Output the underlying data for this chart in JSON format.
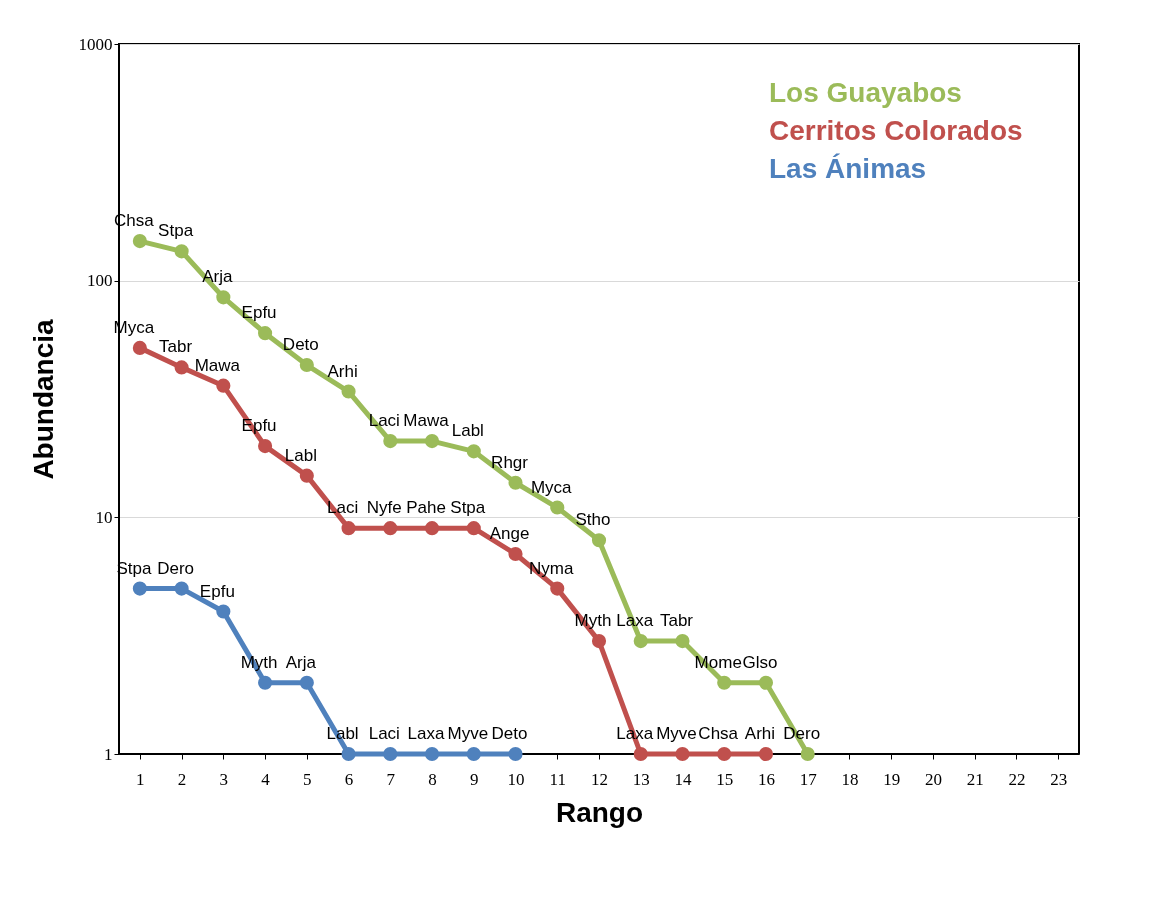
{
  "chart_data": {
    "type": "line",
    "xlabel": "Rango",
    "ylabel": "Abundancia",
    "log": "y",
    "grid": "y",
    "legend": "top right",
    "marker": "circle",
    "line_style": "solid",
    "x": [
      1,
      2,
      3,
      4,
      5,
      6,
      7,
      8,
      9,
      10,
      11,
      12,
      13,
      14,
      15,
      16,
      17
    ],
    "xlim": [
      0.5,
      23.5
    ],
    "xticks": [
      1,
      2,
      3,
      4,
      5,
      6,
      7,
      8,
      9,
      10,
      11,
      12,
      13,
      14,
      15,
      16,
      17,
      18,
      19,
      20,
      21,
      22,
      23
    ],
    "ylim": [
      1,
      1000
    ],
    "yticks": [
      1,
      10,
      100,
      1000
    ],
    "series": [
      {
        "name": "Los Guayabos",
        "color": "#9bbb59",
        "values": [
          147,
          133,
          85,
          60,
          44,
          34,
          21,
          21,
          19,
          14,
          11,
          8,
          3,
          3,
          2,
          2,
          1
        ]
      },
      {
        "name": "Cerritos Colorados",
        "color": "#c0504d",
        "values": [
          52,
          43,
          36,
          20,
          15,
          9,
          9,
          9,
          9,
          7,
          5,
          3,
          1,
          1,
          1,
          1,
          null
        ]
      },
      {
        "name": "Las Ánimas",
        "color": "#4f81bd",
        "values": [
          5,
          5,
          4,
          2,
          2,
          1,
          1,
          1,
          1,
          1,
          null,
          null,
          null,
          null,
          null,
          null,
          null
        ]
      }
    ],
    "annotations": [
      {
        "text": "Chsa",
        "x": 1,
        "y": 147
      },
      {
        "text": "Stpa",
        "x": 2,
        "y": 133
      },
      {
        "text": "Arja",
        "x": 3,
        "y": 85
      },
      {
        "text": "Epfu",
        "x": 4,
        "y": 60
      },
      {
        "text": "Deto",
        "x": 5,
        "y": 44
      },
      {
        "text": "Arhi",
        "x": 6,
        "y": 34
      },
      {
        "text": "Laci",
        "x": 7,
        "y": 21
      },
      {
        "text": "Mawa",
        "x": 8,
        "y": 21
      },
      {
        "text": "Labl",
        "x": 9,
        "y": 19
      },
      {
        "text": "Rhgr",
        "x": 10,
        "y": 14
      },
      {
        "text": "Myca",
        "x": 11,
        "y": 11
      },
      {
        "text": "Stho",
        "x": 12,
        "y": 8
      },
      {
        "text": "Laxa",
        "x": 13,
        "y": 3
      },
      {
        "text": "Tabr",
        "x": 14,
        "y": 3
      },
      {
        "text": "Mome",
        "x": 15,
        "y": 2
      },
      {
        "text": "Glso",
        "x": 16,
        "y": 2
      },
      {
        "text": "Dero",
        "x": 17,
        "y": 1
      },
      {
        "text": "Myca",
        "x": 1,
        "y": 52
      },
      {
        "text": "Tabr",
        "x": 2,
        "y": 43
      },
      {
        "text": "Mawa",
        "x": 3,
        "y": 36
      },
      {
        "text": "Epfu",
        "x": 4,
        "y": 20
      },
      {
        "text": "Labl",
        "x": 5,
        "y": 15
      },
      {
        "text": "Laci",
        "x": 6,
        "y": 9
      },
      {
        "text": "Nyfe",
        "x": 7,
        "y": 9
      },
      {
        "text": "Pahe",
        "x": 8,
        "y": 9
      },
      {
        "text": "Stpa",
        "x": 9,
        "y": 9
      },
      {
        "text": "Ange",
        "x": 10,
        "y": 7
      },
      {
        "text": "Nyma",
        "x": 11,
        "y": 5
      },
      {
        "text": "Myth",
        "x": 12,
        "y": 3
      },
      {
        "text": "Laxa",
        "x": 13,
        "y": 1
      },
      {
        "text": "Myve",
        "x": 14,
        "y": 1
      },
      {
        "text": "Chsa",
        "x": 15,
        "y": 1
      },
      {
        "text": "Arhi",
        "x": 16,
        "y": 1
      },
      {
        "text": "Stpa",
        "x": 1,
        "y": 5
      },
      {
        "text": "Dero",
        "x": 2,
        "y": 5
      },
      {
        "text": "Epfu",
        "x": 3,
        "y": 4
      },
      {
        "text": "Myth",
        "x": 4,
        "y": 2
      },
      {
        "text": "Arja",
        "x": 5,
        "y": 2
      },
      {
        "text": "Labl",
        "x": 6,
        "y": 1
      },
      {
        "text": "Laci",
        "x": 7,
        "y": 1
      },
      {
        "text": "Laxa",
        "x": 8,
        "y": 1
      },
      {
        "text": "Myve",
        "x": 9,
        "y": 1
      },
      {
        "text": "Deto",
        "x": 10,
        "y": 1
      }
    ]
  }
}
